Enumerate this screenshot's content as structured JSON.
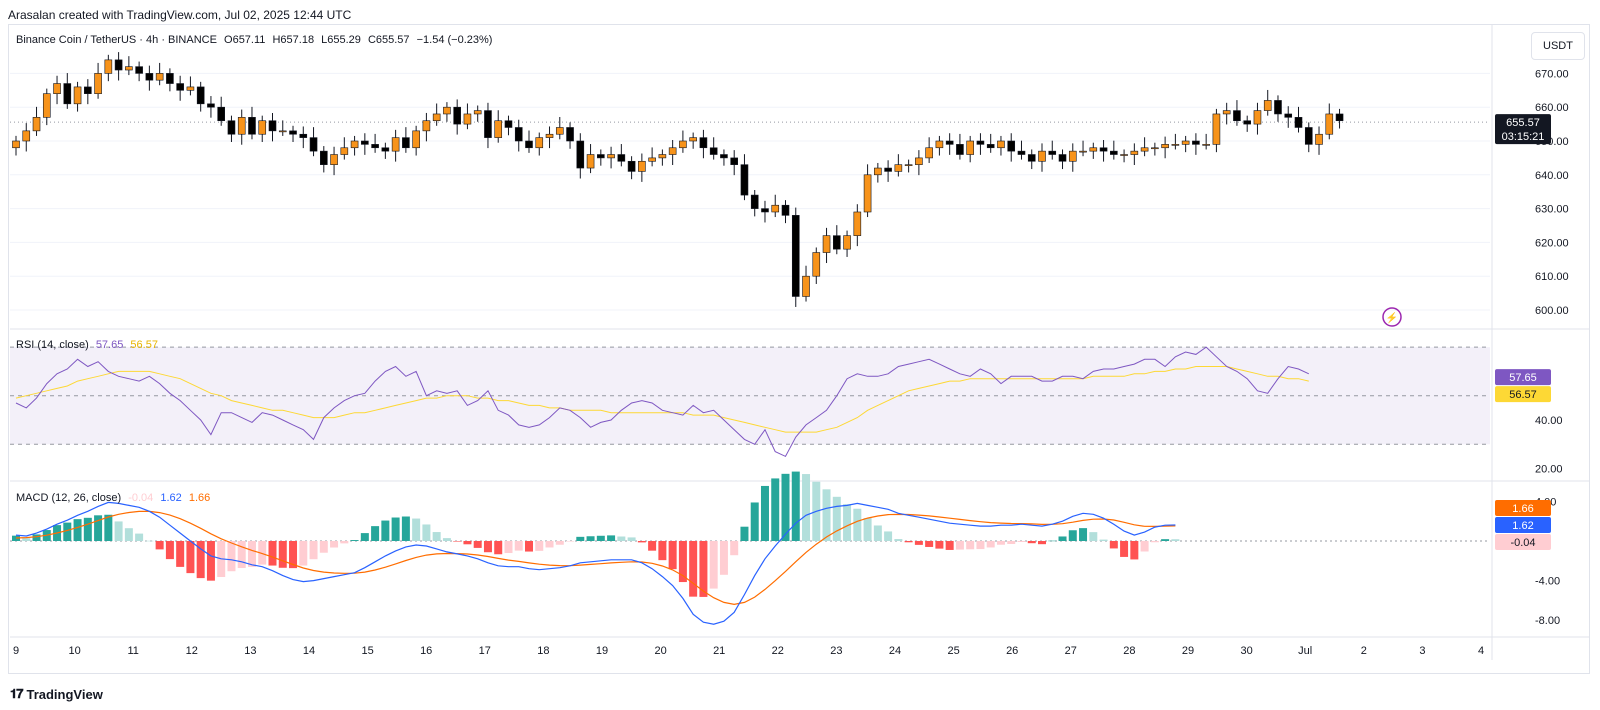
{
  "header": {
    "attribution": "Arasalan created with TradingView.com, Jul 02, 2025 12:44 UTC"
  },
  "footer": {
    "brand": "TradingView",
    "logo_icon": "tradingview-logo-icon"
  },
  "currency_button": "USDT",
  "legend": {
    "symbol": "Binance Coin / TetherUS · 4h · BINANCE",
    "open": "O657.11",
    "high": "H657.18",
    "low": "L655.29",
    "close": "C655.57",
    "change": "−1.54 (−0.23%)"
  },
  "rsi_legend": {
    "label": "RSI (14, close)",
    "value1": "57.65",
    "value2": "56.57"
  },
  "macd_legend": {
    "label": "MACD (12, 26, close)",
    "value1": "-0.04",
    "value2": "1.62",
    "value3": "1.66"
  },
  "colors": {
    "up": "#f7931a",
    "down": "#000000",
    "rsi": "#7e57c2",
    "rsi_ma": "#fdd835",
    "macd": "#2962ff",
    "signal": "#ff6d00",
    "hist_up_strong": "#26a69a",
    "hist_up_weak": "#b2dfdb",
    "hist_down_strong": "#ff5252",
    "hist_down_weak": "#ffcdd2"
  },
  "chart_data": [
    {
      "type": "candlestick",
      "title": "Binance Coin / TetherUS · 4h · BINANCE",
      "ylim": [
        595,
        680
      ],
      "yticks": [
        "670.00",
        "660.00",
        "650.00",
        "640.00",
        "630.00",
        "620.00",
        "610.00",
        "600.00"
      ],
      "xticks": [
        "9",
        "10",
        "11",
        "12",
        "13",
        "14",
        "15",
        "16",
        "17",
        "18",
        "19",
        "20",
        "21",
        "22",
        "23",
        "24",
        "25",
        "26",
        "27",
        "28",
        "29",
        "30",
        "Jul",
        "2",
        "3",
        "4"
      ],
      "last_price": "655.57",
      "countdown": "03:15:21",
      "close": [
        650,
        653,
        657,
        664,
        667,
        661,
        666,
        664,
        670,
        674,
        671,
        672,
        670,
        668,
        670,
        667,
        665,
        666,
        661,
        660,
        656,
        652,
        657,
        652,
        656,
        653,
        653,
        652,
        651,
        647,
        643,
        646,
        648,
        650,
        649,
        648,
        647,
        651,
        648,
        653,
        656,
        658,
        660,
        655,
        658,
        659,
        651,
        656,
        654,
        650,
        648,
        651,
        652,
        654,
        650,
        642,
        646,
        645,
        646,
        644,
        641,
        644,
        645,
        646,
        648,
        650,
        651,
        648,
        646,
        645,
        643,
        634,
        630,
        629,
        631,
        628,
        604,
        610,
        617,
        622,
        618,
        622,
        629,
        640,
        642,
        641,
        643,
        643,
        645,
        648,
        650,
        649,
        646,
        650,
        649,
        648,
        650,
        647,
        646,
        644,
        647,
        646,
        644,
        647,
        647,
        648,
        647,
        646,
        646,
        647,
        648,
        648,
        649,
        649,
        650,
        649,
        649,
        658,
        659,
        656,
        655,
        659,
        662,
        658,
        657,
        654,
        649,
        652,
        658,
        656
      ]
    },
    {
      "type": "line",
      "title": "RSI (14, close)",
      "ylim": [
        20,
        70
      ],
      "yticks": [
        "57.65",
        "40.00",
        "20.00"
      ],
      "bands": [
        30,
        70
      ],
      "series": [
        {
          "name": "RSI",
          "values": [
            47,
            45,
            49,
            55,
            59,
            61,
            65,
            62,
            64,
            60,
            58,
            57,
            56,
            58,
            55,
            51,
            48,
            44,
            40,
            34,
            43,
            43,
            41,
            39,
            43,
            42,
            40,
            38,
            36,
            32,
            41,
            45,
            48,
            50,
            51,
            56,
            60,
            62,
            58,
            60,
            50,
            52,
            51,
            52,
            46,
            48,
            52,
            44,
            42,
            38,
            37,
            38,
            41,
            45,
            44,
            41,
            37,
            39,
            40,
            44,
            47,
            48,
            47,
            44,
            43,
            42,
            46,
            43,
            44,
            40,
            36,
            32,
            30,
            36,
            27,
            25,
            33,
            38,
            41,
            44,
            50,
            57,
            59,
            58,
            58,
            59,
            62,
            63,
            64,
            65,
            63,
            61,
            59,
            58,
            61,
            59,
            55,
            58,
            58,
            58,
            56,
            56,
            58,
            58,
            57,
            60,
            61,
            61,
            62,
            63,
            65,
            65,
            62,
            66,
            68,
            67,
            70,
            66,
            62,
            60,
            57,
            52,
            51,
            57,
            62,
            61,
            59
          ]
        },
        {
          "name": "RSI-based MA",
          "values": [
            49,
            50,
            51,
            52,
            53,
            54,
            56,
            57,
            58,
            59,
            60,
            60,
            60,
            60,
            59,
            58,
            57,
            55,
            53,
            51,
            50,
            48,
            47,
            46,
            45,
            44,
            44,
            43,
            42,
            41,
            41,
            41,
            42,
            43,
            43,
            44,
            45,
            46,
            47,
            48,
            49,
            49,
            50,
            50,
            50,
            49,
            49,
            48,
            48,
            47,
            46,
            46,
            45,
            45,
            44,
            44,
            44,
            44,
            43,
            43,
            43,
            43,
            43,
            43,
            43,
            43,
            42,
            42,
            42,
            41,
            40,
            39,
            38,
            37,
            36,
            35,
            35,
            35,
            35,
            36,
            37,
            39,
            41,
            44,
            46,
            48,
            50,
            52,
            53,
            54,
            55,
            56,
            56,
            57,
            57,
            57,
            57,
            57,
            57,
            57,
            57,
            57,
            57,
            57,
            57,
            58,
            58,
            58,
            58,
            59,
            59,
            60,
            60,
            61,
            61,
            62,
            62,
            62,
            62,
            61,
            60,
            59,
            58,
            58,
            57,
            57,
            56
          ]
        }
      ]
    },
    {
      "type": "line",
      "title": "MACD (12, 26, close)",
      "ylim": [
        -9,
        5
      ],
      "yticks": [
        "4.00",
        "-4.00",
        "-8.00"
      ],
      "macd": [
        0.6,
        0.5,
        0.8,
        1.2,
        1.7,
        2.1,
        2.6,
        3.0,
        3.5,
        3.9,
        3.8,
        3.6,
        3.4,
        3.0,
        2.4,
        1.6,
        0.8,
        0.0,
        -0.8,
        -1.5,
        -1.8,
        -1.9,
        -2.1,
        -2.4,
        -2.6,
        -3.0,
        -3.5,
        -3.9,
        -4.1,
        -4.0,
        -3.8,
        -3.6,
        -3.4,
        -3.2,
        -2.7,
        -2.1,
        -1.5,
        -1.0,
        -0.6,
        -0.4,
        -0.5,
        -0.8,
        -1.1,
        -1.3,
        -1.5,
        -1.8,
        -2.2,
        -2.5,
        -2.6,
        -2.6,
        -2.8,
        -2.9,
        -2.8,
        -2.7,
        -2.5,
        -2.2,
        -2.1,
        -2.0,
        -1.9,
        -1.9,
        -1.9,
        -2.2,
        -2.8,
        -3.6,
        -4.5,
        -5.8,
        -7.4,
        -8.2,
        -8.4,
        -8.1,
        -7.2,
        -5.4,
        -3.5,
        -1.8,
        -0.5,
        0.7,
        1.8,
        2.6,
        3.0,
        3.3,
        3.5,
        3.6,
        3.8,
        3.6,
        3.4,
        3.2,
        2.8,
        2.6,
        2.4,
        2.2,
        2.0,
        1.8,
        1.7,
        1.6,
        1.5,
        1.5,
        1.6,
        1.6,
        1.7,
        1.6,
        1.5,
        1.7,
        2.0,
        2.5,
        2.8,
        2.7,
        2.3,
        1.7,
        1.0,
        0.6,
        0.9,
        1.4,
        1.6,
        1.62
      ]
    }
  ]
}
